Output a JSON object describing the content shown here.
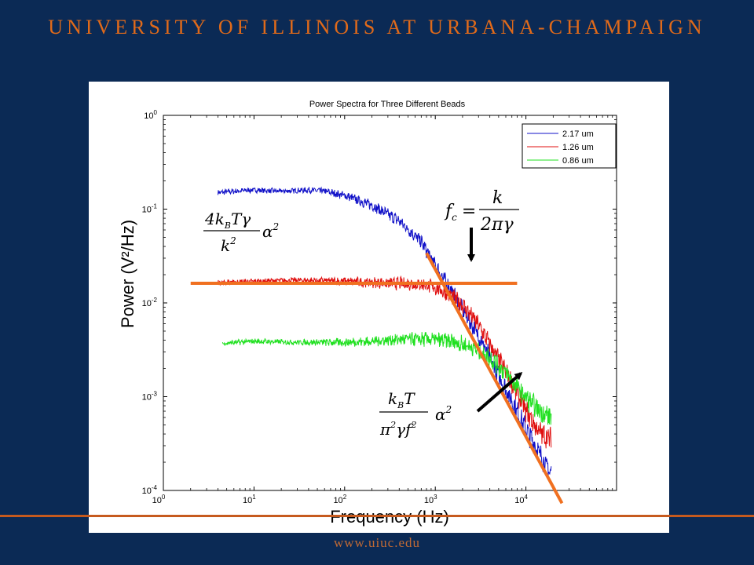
{
  "header": {
    "title": "UNIVERSITY OF ILLINOIS AT URBANA-CHAMPAIGN"
  },
  "footer": {
    "url": "www.uiuc.edu"
  },
  "colors": {
    "background": "#0b2a55",
    "accent": "#e06a1a",
    "fit_line": "#f07020"
  },
  "chart_data": {
    "type": "line",
    "title": "Power Spectra for Three Different Beads",
    "xlabel": "Frequency (Hz)",
    "ylabel": "Power (V²/Hz)",
    "x_scale": "log",
    "y_scale": "log",
    "xlim": [
      1,
      100000
    ],
    "ylim": [
      0.0001,
      1
    ],
    "x_ticks": [
      {
        "value": 1,
        "base": "10",
        "exp": "0"
      },
      {
        "value": 10,
        "base": "10",
        "exp": "1"
      },
      {
        "value": 100,
        "base": "10",
        "exp": "2"
      },
      {
        "value": 1000,
        "base": "10",
        "exp": "3"
      },
      {
        "value": 10000,
        "base": "10",
        "exp": "4"
      }
    ],
    "y_ticks": [
      {
        "value": 1,
        "base": "10",
        "exp": "0"
      },
      {
        "value": 0.1,
        "base": "10",
        "exp": "-1"
      },
      {
        "value": 0.01,
        "base": "10",
        "exp": "-2"
      },
      {
        "value": 0.001,
        "base": "10",
        "exp": "-3"
      },
      {
        "value": 0.0001,
        "base": "10",
        "exp": "-4"
      }
    ],
    "legend_position": "top-right",
    "series": [
      {
        "name": "2.17 um",
        "color": "#1010c8",
        "points": [
          [
            4,
            0.15
          ],
          [
            6,
            0.155
          ],
          [
            10,
            0.16
          ],
          [
            20,
            0.155
          ],
          [
            40,
            0.16
          ],
          [
            60,
            0.155
          ],
          [
            100,
            0.14
          ],
          [
            200,
            0.11
          ],
          [
            400,
            0.075
          ],
          [
            700,
            0.045
          ],
          [
            1000,
            0.025
          ],
          [
            1500,
            0.0135
          ],
          [
            2000,
            0.0085
          ],
          [
            3000,
            0.0045
          ],
          [
            5000,
            0.0017
          ],
          [
            7000,
            0.0009
          ],
          [
            10000,
            0.00045
          ],
          [
            14000,
            0.00025
          ],
          [
            19000,
            0.00015
          ]
        ]
      },
      {
        "name": "1.26 um",
        "color": "#e01010",
        "points": [
          [
            4,
            0.0165
          ],
          [
            10,
            0.017
          ],
          [
            30,
            0.0175
          ],
          [
            100,
            0.017
          ],
          [
            200,
            0.0165
          ],
          [
            500,
            0.016
          ],
          [
            800,
            0.0155
          ],
          [
            1000,
            0.0145
          ],
          [
            1500,
            0.012
          ],
          [
            2000,
            0.0095
          ],
          [
            3000,
            0.0058
          ],
          [
            5000,
            0.0025
          ],
          [
            7000,
            0.0014
          ],
          [
            10000,
            0.0007
          ],
          [
            14000,
            0.00042
          ],
          [
            19000,
            0.00035
          ]
        ]
      },
      {
        "name": "0.86 um",
        "color": "#20e020",
        "points": [
          [
            4.5,
            0.0037
          ],
          [
            10,
            0.0039
          ],
          [
            30,
            0.0038
          ],
          [
            100,
            0.0038
          ],
          [
            200,
            0.0039
          ],
          [
            400,
            0.0041
          ],
          [
            800,
            0.0041
          ],
          [
            1500,
            0.0039
          ],
          [
            2500,
            0.0034
          ],
          [
            4000,
            0.0026
          ],
          [
            6000,
            0.0018
          ],
          [
            9000,
            0.0011
          ],
          [
            13000,
            0.00075
          ],
          [
            19000,
            0.0006
          ]
        ]
      }
    ],
    "fit_lines": [
      {
        "kind": "plateau",
        "points": [
          [
            2,
            0.0162
          ],
          [
            8000,
            0.0162
          ]
        ]
      },
      {
        "kind": "power-law",
        "points": [
          [
            800,
            0.034
          ],
          [
            25000,
            7.3e-05
          ]
        ]
      }
    ],
    "annotations": [
      {
        "id": "plateau-formula",
        "value": "4kBTγ/k² α²"
      },
      {
        "id": "corner-frequency",
        "value": "fc = k/2πγ"
      },
      {
        "id": "tail-formula",
        "value": "kBT/π²γf² α²"
      }
    ]
  }
}
